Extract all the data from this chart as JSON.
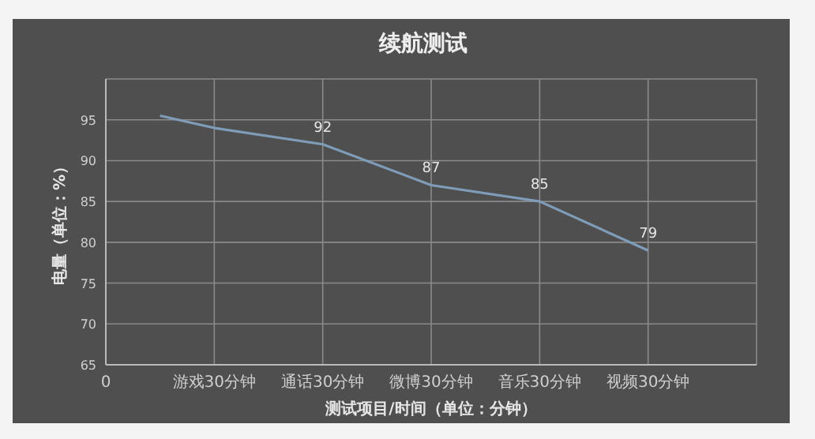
{
  "chart_data": {
    "type": "line",
    "title": "续航测试",
    "xlabel": "测试项目/时间（单位：分钟）",
    "ylabel": "电量（单位：%）",
    "categories": [
      "0",
      null,
      "游戏30分钟",
      null,
      "通话30分钟",
      null,
      "微博30分钟",
      null,
      "音乐30分钟",
      null,
      "视频30分钟",
      null,
      null
    ],
    "series": [
      {
        "color": "#7f9cb8",
        "values": [
          null,
          95.5,
          94,
          null,
          92,
          null,
          87,
          null,
          85,
          null,
          79,
          null,
          null
        ],
        "value_labels": [
          null,
          null,
          null,
          null,
          "92",
          null,
          "87",
          null,
          "85",
          null,
          "79",
          null,
          null
        ]
      }
    ],
    "ylim": [
      65,
      100
    ],
    "yticks": [
      65,
      70,
      75,
      80,
      85,
      90,
      95,
      {
        "value": 100,
        "label": null
      }
    ],
    "grid": true,
    "marker": "none",
    "line_style": "solid"
  }
}
